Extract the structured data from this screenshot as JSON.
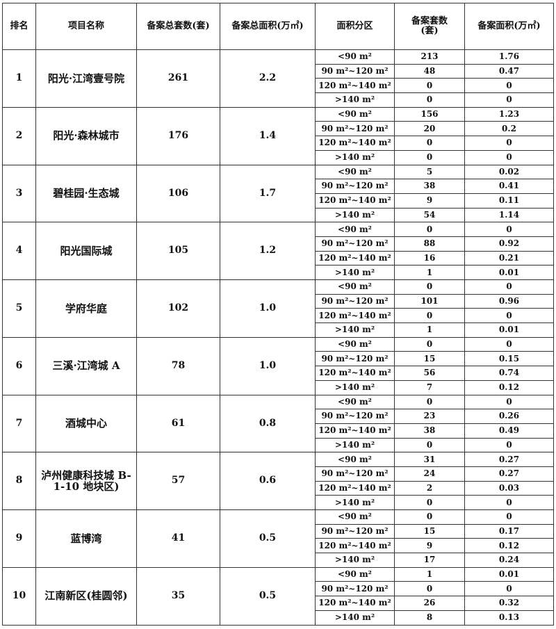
{
  "headers": [
    "排名",
    "项目名称",
    "备案总套数(套)",
    "备案总面积(万㎡)",
    "面积分区",
    "备案套数(套)",
    "备案面积(万㎡)"
  ],
  "zones": [
    "<90 m²",
    "90 m²~120 m²",
    "120 m²~140 m²",
    ">140 m²"
  ],
  "projects": [
    {
      "rank": "1",
      "name": "阳光·江湾壹号院",
      "units": "261",
      "area": "2.2",
      "sub_units": [
        "213",
        "48",
        "0",
        "0"
      ],
      "sub_area": [
        "1.76",
        "0.47",
        "0",
        "0"
      ]
    },
    {
      "rank": "2",
      "name": "阳光·森林城市",
      "units": "176",
      "area": "1.4",
      "sub_units": [
        "156",
        "20",
        "0",
        "0"
      ],
      "sub_area": [
        "1.23",
        "0.2",
        "0",
        "0"
      ]
    },
    {
      "rank": "3",
      "name": "碧桂园·生态城",
      "units": "106",
      "area": "1.7",
      "sub_units": [
        "5",
        "38",
        "9",
        "54"
      ],
      "sub_area": [
        "0.02",
        "0.41",
        "0.11",
        "1.14"
      ]
    },
    {
      "rank": "4",
      "name": "阳光国际城",
      "units": "105",
      "area": "1.2",
      "sub_units": [
        "0",
        "88",
        "16",
        "1"
      ],
      "sub_area": [
        "0",
        "0.92",
        "0.21",
        "0.01"
      ]
    },
    {
      "rank": "5",
      "name": "学府华庭",
      "units": "102",
      "area": "1.0",
      "sub_units": [
        "0",
        "101",
        "0",
        "1"
      ],
      "sub_area": [
        "0",
        "0.96",
        "0",
        "0.01"
      ]
    },
    {
      "rank": "6",
      "name": "三溪·江湾城 A",
      "units": "78",
      "area": "1.0",
      "sub_units": [
        "0",
        "15",
        "56",
        "7"
      ],
      "sub_area": [
        "0",
        "0.15",
        "0.74",
        "0.12"
      ]
    },
    {
      "rank": "7",
      "name": "酒城中心",
      "units": "61",
      "area": "0.8",
      "sub_units": [
        "0",
        "23",
        "38",
        "0"
      ],
      "sub_area": [
        "0",
        "0.26",
        "0.49",
        "0"
      ]
    },
    {
      "rank": "8",
      "name": "泸州健康科技城 B-1-10 地块区)",
      "units": "57",
      "area": "0.6",
      "sub_units": [
        "31",
        "24",
        "2",
        "0"
      ],
      "sub_area": [
        "0.27",
        "0.27",
        "0.03",
        "0"
      ]
    },
    {
      "rank": "9",
      "name": "蓝博湾",
      "units": "41",
      "area": "0.5",
      "sub_units": [
        "0",
        "15",
        "9",
        "17"
      ],
      "sub_area": [
        "0",
        "0.17",
        "0.12",
        "0.24"
      ]
    },
    {
      "rank": "10",
      "name": "江南新区(桂圆邻)",
      "units": "35",
      "area": "0.5",
      "sub_units": [
        "1",
        "0",
        "26",
        "8"
      ],
      "sub_area": [
        "0.01",
        "0",
        "0.32",
        "0.13"
      ]
    }
  ]
}
